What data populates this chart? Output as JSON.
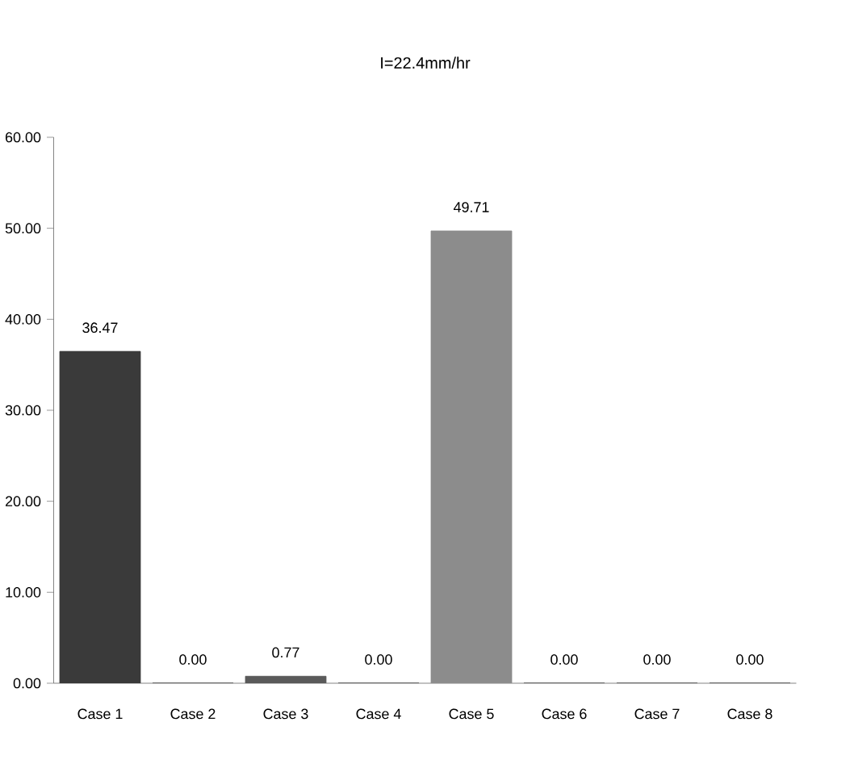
{
  "chart_data": {
    "type": "bar",
    "title": "I=22.4mm/hr",
    "categories": [
      "Case 1",
      "Case 2",
      "Case 3",
      "Case 4",
      "Case 5",
      "Case 6",
      "Case 7",
      "Case 8"
    ],
    "values": [
      36.47,
      0,
      0.77,
      0,
      49.71,
      0,
      0,
      0
    ],
    "value_labels": [
      "36.47",
      "0.00",
      "0.77",
      "0.00",
      "49.71",
      "0.00",
      "0.00",
      "0.00"
    ],
    "colors": [
      "#3a3a3a",
      "#3a3a3a",
      "#5a5a5a",
      "#3a3a3a",
      "#8c8c8c",
      "#3a3a3a",
      "#3a3a3a",
      "#3a3a3a"
    ],
    "ylim": [
      0,
      60
    ],
    "yticks": [
      {
        "value": 0,
        "label": "0.00"
      },
      {
        "value": 10,
        "label": "10.00"
      },
      {
        "value": 20,
        "label": "20.00"
      },
      {
        "value": 30,
        "label": "30.00"
      },
      {
        "value": 40,
        "label": "40.00"
      },
      {
        "value": 50,
        "label": "50.00"
      },
      {
        "value": 60,
        "label": "60.00"
      }
    ],
    "grid": false
  }
}
